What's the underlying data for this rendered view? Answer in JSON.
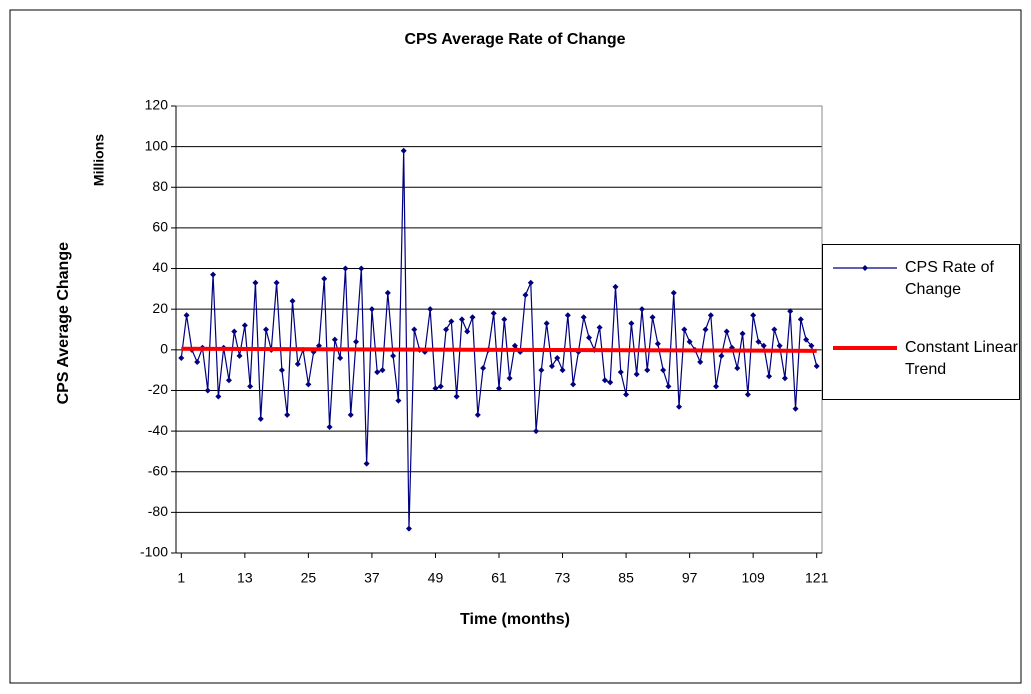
{
  "chart_data": {
    "type": "line",
    "title": "CPS Average Rate of Change",
    "xlabel": "Time (months)",
    "ylabel": "CPS Average Change",
    "yunit": "Millions",
    "x": [
      1,
      2,
      3,
      4,
      5,
      6,
      7,
      8,
      9,
      10,
      11,
      12,
      13,
      14,
      15,
      16,
      17,
      18,
      19,
      20,
      21,
      22,
      23,
      24,
      25,
      26,
      27,
      28,
      29,
      30,
      31,
      32,
      33,
      34,
      35,
      36,
      37,
      38,
      39,
      40,
      41,
      42,
      43,
      44,
      45,
      46,
      47,
      48,
      49,
      50,
      51,
      52,
      53,
      54,
      55,
      56,
      57,
      58,
      59,
      60,
      61,
      62,
      63,
      64,
      65,
      66,
      67,
      68,
      69,
      70,
      71,
      72,
      73,
      74,
      75,
      76,
      77,
      78,
      79,
      80,
      81,
      82,
      83,
      84,
      85,
      86,
      87,
      88,
      89,
      90,
      91,
      92,
      93,
      94,
      95,
      96,
      97,
      98,
      99,
      100,
      101,
      102,
      103,
      104,
      105,
      106,
      107,
      108,
      109,
      110,
      111,
      112,
      113,
      114,
      115,
      116,
      117,
      118,
      119,
      120,
      121
    ],
    "series": [
      {
        "name": "CPS Rate of Change",
        "color": "#000080",
        "marker": "diamond",
        "values": [
          -4,
          17,
          0,
          -6,
          1,
          -20,
          37,
          -23,
          1,
          -15,
          9,
          -3,
          12,
          -18,
          33,
          -34,
          10,
          0,
          33,
          -10,
          -32,
          24,
          -7,
          0,
          -17,
          -1,
          2,
          35,
          -38,
          5,
          -4,
          40,
          -32,
          4,
          40,
          -56,
          20,
          -11,
          -10,
          28,
          -3,
          -25,
          98,
          -88,
          10,
          0,
          -1,
          20,
          -19,
          -18,
          10,
          14,
          -23,
          15,
          9,
          16,
          -32,
          -9,
          0,
          18,
          -19,
          15,
          -14,
          2,
          -1,
          27,
          33,
          -40,
          -10,
          13,
          -8,
          -4,
          -10,
          17,
          -17,
          -1,
          16,
          6,
          0,
          11,
          -15,
          -16,
          31,
          -11,
          -22,
          13,
          -12,
          20,
          -10,
          16,
          3,
          -10,
          -18,
          28,
          -28,
          10,
          4,
          0,
          -6,
          10,
          17,
          -18,
          -3,
          9,
          1,
          -9,
          8,
          -22,
          17,
          4,
          2,
          -13,
          10,
          2,
          -14,
          19,
          -29,
          15,
          5,
          2,
          -8
        ]
      },
      {
        "name": "Constant Linear Trend",
        "color": "#ff0000",
        "x": [
          1,
          121
        ],
        "values": [
          0.5,
          -0.5
        ]
      }
    ],
    "xlim": [
      0,
      122
    ],
    "xticks": [
      1,
      13,
      25,
      37,
      49,
      61,
      73,
      85,
      97,
      109,
      121
    ],
    "ylim": [
      -100,
      120
    ],
    "yticks": [
      -100,
      -80,
      -60,
      -40,
      -20,
      0,
      20,
      40,
      60,
      80,
      100,
      120
    ],
    "grid": true,
    "legend": "right"
  }
}
